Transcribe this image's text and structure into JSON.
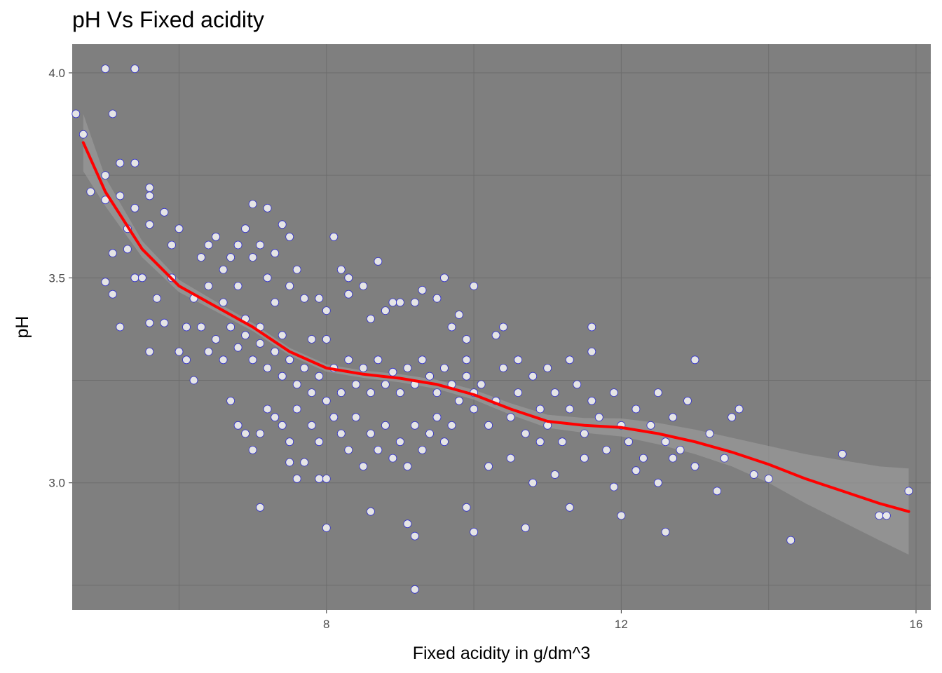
{
  "chart_data": {
    "type": "scatter",
    "title": "pH Vs Fixed acidity",
    "xlabel": "Fixed acidity in g/dm^3",
    "ylabel": "pH",
    "xlim": [
      4.55,
      16.2
    ],
    "ylim": [
      2.69,
      4.07
    ],
    "x_ticks": [
      8,
      12,
      16
    ],
    "x_tick_labels": [
      "8",
      "12",
      "16"
    ],
    "y_ticks": [
      3.0,
      3.5,
      4.0
    ],
    "y_tick_labels": [
      "3.0",
      "3.5",
      "4.0"
    ],
    "grid": true,
    "legend": "none",
    "colors": {
      "panel_background": "#7f7f7f",
      "grid_major": "#6e6e6e",
      "point_fill": "#ffffff",
      "point_stroke": "#3333cc",
      "smooth_line": "#ff0000",
      "confidence_band": "#9a9a9a"
    },
    "points": [
      [
        4.6,
        3.9
      ],
      [
        4.7,
        3.85
      ],
      [
        5.0,
        4.01
      ],
      [
        5.4,
        4.01
      ],
      [
        5.1,
        3.9
      ],
      [
        5.2,
        3.78
      ],
      [
        5.4,
        3.78
      ],
      [
        4.8,
        3.71
      ],
      [
        5.0,
        3.75
      ],
      [
        5.0,
        3.69
      ],
      [
        5.2,
        3.7
      ],
      [
        5.3,
        3.62
      ],
      [
        5.4,
        3.67
      ],
      [
        5.6,
        3.72
      ],
      [
        5.6,
        3.7
      ],
      [
        5.6,
        3.63
      ],
      [
        5.8,
        3.66
      ],
      [
        5.0,
        3.49
      ],
      [
        5.1,
        3.46
      ],
      [
        5.2,
        3.38
      ],
      [
        5.1,
        3.56
      ],
      [
        5.3,
        3.57
      ],
      [
        5.4,
        3.5
      ],
      [
        5.5,
        3.5
      ],
      [
        5.6,
        3.39
      ],
      [
        5.6,
        3.32
      ],
      [
        5.7,
        3.45
      ],
      [
        5.8,
        3.39
      ],
      [
        5.9,
        3.5
      ],
      [
        5.9,
        3.58
      ],
      [
        6.0,
        3.32
      ],
      [
        6.0,
        3.62
      ],
      [
        6.1,
        3.38
      ],
      [
        6.1,
        3.3
      ],
      [
        6.2,
        3.25
      ],
      [
        6.2,
        3.45
      ],
      [
        6.3,
        3.55
      ],
      [
        6.4,
        3.58
      ],
      [
        6.4,
        3.48
      ],
      [
        6.5,
        3.6
      ],
      [
        6.6,
        3.52
      ],
      [
        6.6,
        3.44
      ],
      [
        6.7,
        3.55
      ],
      [
        6.8,
        3.58
      ],
      [
        6.8,
        3.48
      ],
      [
        6.9,
        3.62
      ],
      [
        6.9,
        3.4
      ],
      [
        7.0,
        3.55
      ],
      [
        7.0,
        3.68
      ],
      [
        7.1,
        3.38
      ],
      [
        7.1,
        3.58
      ],
      [
        7.2,
        3.5
      ],
      [
        7.2,
        3.67
      ],
      [
        7.3,
        3.44
      ],
      [
        7.3,
        3.56
      ],
      [
        7.4,
        3.36
      ],
      [
        7.4,
        3.63
      ],
      [
        7.5,
        3.48
      ],
      [
        7.5,
        3.6
      ],
      [
        7.6,
        3.52
      ],
      [
        7.7,
        3.45
      ],
      [
        7.8,
        3.35
      ],
      [
        7.9,
        3.45
      ],
      [
        8.0,
        3.42
      ],
      [
        8.0,
        3.35
      ],
      [
        8.1,
        3.6
      ],
      [
        8.2,
        3.52
      ],
      [
        8.3,
        3.46
      ],
      [
        8.3,
        3.5
      ],
      [
        8.5,
        3.48
      ],
      [
        8.6,
        3.4
      ],
      [
        8.7,
        3.54
      ],
      [
        8.8,
        3.42
      ],
      [
        8.9,
        3.44
      ],
      [
        9.0,
        3.44
      ],
      [
        9.2,
        3.44
      ],
      [
        9.3,
        3.47
      ],
      [
        9.5,
        3.45
      ],
      [
        9.6,
        3.5
      ],
      [
        9.8,
        3.41
      ],
      [
        10.0,
        3.48
      ],
      [
        6.3,
        3.38
      ],
      [
        6.4,
        3.32
      ],
      [
        6.5,
        3.35
      ],
      [
        6.6,
        3.3
      ],
      [
        6.7,
        3.38
      ],
      [
        6.8,
        3.33
      ],
      [
        6.9,
        3.36
      ],
      [
        7.0,
        3.3
      ],
      [
        7.1,
        3.34
      ],
      [
        7.2,
        3.28
      ],
      [
        7.3,
        3.32
      ],
      [
        7.4,
        3.26
      ],
      [
        7.5,
        3.3
      ],
      [
        7.6,
        3.24
      ],
      [
        7.7,
        3.28
      ],
      [
        7.8,
        3.22
      ],
      [
        7.9,
        3.26
      ],
      [
        8.0,
        3.2
      ],
      [
        8.1,
        3.28
      ],
      [
        8.2,
        3.22
      ],
      [
        8.3,
        3.3
      ],
      [
        8.4,
        3.24
      ],
      [
        8.5,
        3.28
      ],
      [
        8.6,
        3.22
      ],
      [
        8.7,
        3.3
      ],
      [
        8.8,
        3.24
      ],
      [
        8.9,
        3.27
      ],
      [
        9.0,
        3.22
      ],
      [
        9.1,
        3.28
      ],
      [
        9.2,
        3.24
      ],
      [
        9.3,
        3.3
      ],
      [
        9.4,
        3.26
      ],
      [
        9.5,
        3.22
      ],
      [
        9.6,
        3.28
      ],
      [
        9.7,
        3.24
      ],
      [
        9.8,
        3.2
      ],
      [
        9.9,
        3.26
      ],
      [
        10.0,
        3.22
      ],
      [
        6.7,
        3.2
      ],
      [
        6.8,
        3.14
      ],
      [
        6.9,
        3.12
      ],
      [
        7.0,
        3.08
      ],
      [
        7.1,
        3.12
      ],
      [
        7.2,
        3.18
      ],
      [
        7.3,
        3.16
      ],
      [
        7.4,
        3.14
      ],
      [
        7.5,
        3.1
      ],
      [
        7.6,
        3.18
      ],
      [
        7.7,
        3.05
      ],
      [
        7.8,
        3.14
      ],
      [
        7.9,
        3.1
      ],
      [
        8.0,
        3.01
      ],
      [
        8.1,
        3.16
      ],
      [
        8.2,
        3.12
      ],
      [
        8.3,
        3.08
      ],
      [
        8.4,
        3.16
      ],
      [
        8.5,
        3.04
      ],
      [
        8.6,
        3.12
      ],
      [
        8.7,
        3.08
      ],
      [
        8.8,
        3.14
      ],
      [
        8.9,
        3.06
      ],
      [
        9.0,
        3.1
      ],
      [
        9.1,
        3.04
      ],
      [
        9.2,
        3.14
      ],
      [
        9.3,
        3.08
      ],
      [
        9.4,
        3.12
      ],
      [
        9.5,
        3.16
      ],
      [
        9.6,
        3.1
      ],
      [
        9.7,
        3.14
      ],
      [
        7.1,
        2.94
      ],
      [
        7.5,
        3.05
      ],
      [
        7.6,
        3.01
      ],
      [
        7.9,
        3.01
      ],
      [
        8.0,
        2.89
      ],
      [
        8.6,
        2.93
      ],
      [
        9.1,
        2.9
      ],
      [
        9.2,
        2.87
      ],
      [
        9.2,
        2.74
      ],
      [
        9.9,
        2.94
      ],
      [
        10.0,
        2.88
      ],
      [
        10.7,
        2.89
      ],
      [
        10.8,
        3.0
      ],
      [
        11.3,
        2.94
      ],
      [
        12.0,
        2.92
      ],
      [
        12.6,
        2.88
      ],
      [
        14.3,
        2.86
      ],
      [
        15.5,
        2.92
      ],
      [
        15.6,
        2.92
      ],
      [
        15.9,
        2.98
      ],
      [
        10.0,
        3.18
      ],
      [
        10.1,
        3.24
      ],
      [
        10.2,
        3.14
      ],
      [
        10.3,
        3.2
      ],
      [
        10.4,
        3.28
      ],
      [
        10.5,
        3.16
      ],
      [
        10.6,
        3.22
      ],
      [
        10.7,
        3.12
      ],
      [
        10.8,
        3.26
      ],
      [
        10.9,
        3.18
      ],
      [
        11.0,
        3.14
      ],
      [
        11.1,
        3.22
      ],
      [
        11.2,
        3.1
      ],
      [
        11.3,
        3.18
      ],
      [
        11.4,
        3.24
      ],
      [
        11.5,
        3.12
      ],
      [
        11.6,
        3.2
      ],
      [
        11.7,
        3.16
      ],
      [
        11.8,
        3.08
      ],
      [
        11.9,
        3.22
      ],
      [
        12.0,
        3.14
      ],
      [
        12.1,
        3.1
      ],
      [
        12.2,
        3.18
      ],
      [
        12.3,
        3.06
      ],
      [
        12.4,
        3.14
      ],
      [
        12.5,
        3.22
      ],
      [
        12.6,
        3.1
      ],
      [
        12.7,
        3.16
      ],
      [
        12.8,
        3.08
      ],
      [
        12.9,
        3.2
      ],
      [
        13.0,
        3.3
      ],
      [
        13.2,
        3.12
      ],
      [
        13.4,
        3.06
      ],
      [
        13.5,
        3.16
      ],
      [
        13.6,
        3.18
      ],
      [
        13.8,
        3.02
      ],
      [
        14.0,
        3.01
      ],
      [
        15.0,
        3.07
      ],
      [
        10.2,
        3.04
      ],
      [
        10.5,
        3.06
      ],
      [
        10.9,
        3.1
      ],
      [
        11.1,
        3.02
      ],
      [
        11.5,
        3.06
      ],
      [
        11.9,
        2.99
      ],
      [
        12.2,
        3.03
      ],
      [
        12.5,
        3.0
      ],
      [
        12.7,
        3.06
      ],
      [
        13.0,
        3.04
      ],
      [
        13.3,
        2.98
      ],
      [
        10.3,
        3.36
      ],
      [
        10.6,
        3.3
      ],
      [
        11.0,
        3.28
      ],
      [
        11.3,
        3.3
      ],
      [
        11.6,
        3.32
      ],
      [
        11.6,
        3.38
      ],
      [
        9.9,
        3.35
      ],
      [
        9.7,
        3.38
      ],
      [
        9.9,
        3.3
      ],
      [
        10.4,
        3.38
      ]
    ],
    "smooth_line": {
      "x": [
        4.7,
        5.0,
        5.5,
        6.0,
        6.5,
        7.0,
        7.5,
        8.0,
        8.5,
        9.0,
        9.5,
        10.0,
        10.5,
        11.0,
        11.5,
        12.0,
        12.5,
        13.0,
        13.5,
        14.0,
        14.5,
        15.0,
        15.5,
        15.9
      ],
      "y": [
        3.83,
        3.71,
        3.57,
        3.48,
        3.43,
        3.38,
        3.32,
        3.28,
        3.265,
        3.255,
        3.24,
        3.215,
        3.18,
        3.15,
        3.14,
        3.135,
        3.12,
        3.1,
        3.075,
        3.045,
        3.01,
        2.98,
        2.95,
        2.93
      ],
      "band_halfwidth": [
        0.07,
        0.035,
        0.02,
        0.015,
        0.012,
        0.01,
        0.009,
        0.009,
        0.009,
        0.01,
        0.011,
        0.012,
        0.014,
        0.016,
        0.018,
        0.022,
        0.026,
        0.03,
        0.035,
        0.045,
        0.06,
        0.075,
        0.09,
        0.105
      ]
    }
  }
}
